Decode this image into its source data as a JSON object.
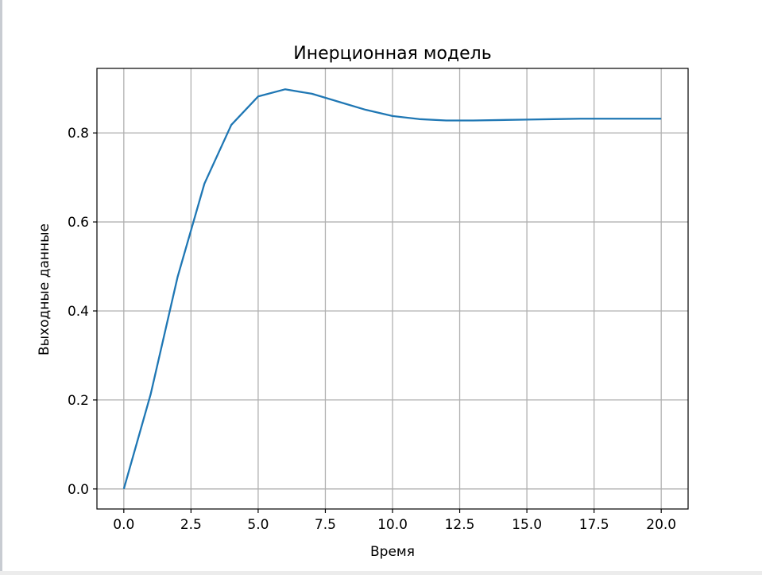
{
  "chart_data": {
    "type": "line",
    "title": "Инерционная модель",
    "xlabel": "Время",
    "ylabel": "Выходные данные",
    "xlim": [
      -1,
      21
    ],
    "ylim": [
      -0.045,
      0.945
    ],
    "xticks": [
      0,
      2.5,
      5,
      7.5,
      10,
      12.5,
      15,
      17.5,
      20
    ],
    "xtick_labels": [
      "0.0",
      "2.5",
      "5.0",
      "7.5",
      "10.0",
      "12.5",
      "15.0",
      "17.5",
      "20.0"
    ],
    "yticks": [
      0,
      0.2,
      0.4,
      0.6,
      0.8
    ],
    "ytick_labels": [
      "0.0",
      "0.2",
      "0.4",
      "0.6",
      "0.8"
    ],
    "grid": true,
    "series": [
      {
        "color": "#1f77b4",
        "x": [
          0,
          1,
          2,
          3,
          4,
          5,
          6,
          7,
          8,
          9,
          10,
          11,
          12,
          13,
          14,
          15,
          16,
          17,
          18,
          19,
          20
        ],
        "y": [
          0,
          0.213,
          0.476,
          0.686,
          0.818,
          0.882,
          0.898,
          0.888,
          0.87,
          0.852,
          0.838,
          0.831,
          0.828,
          0.828,
          0.829,
          0.83,
          0.831,
          0.832,
          0.832,
          0.832,
          0.832
        ]
      }
    ]
  }
}
